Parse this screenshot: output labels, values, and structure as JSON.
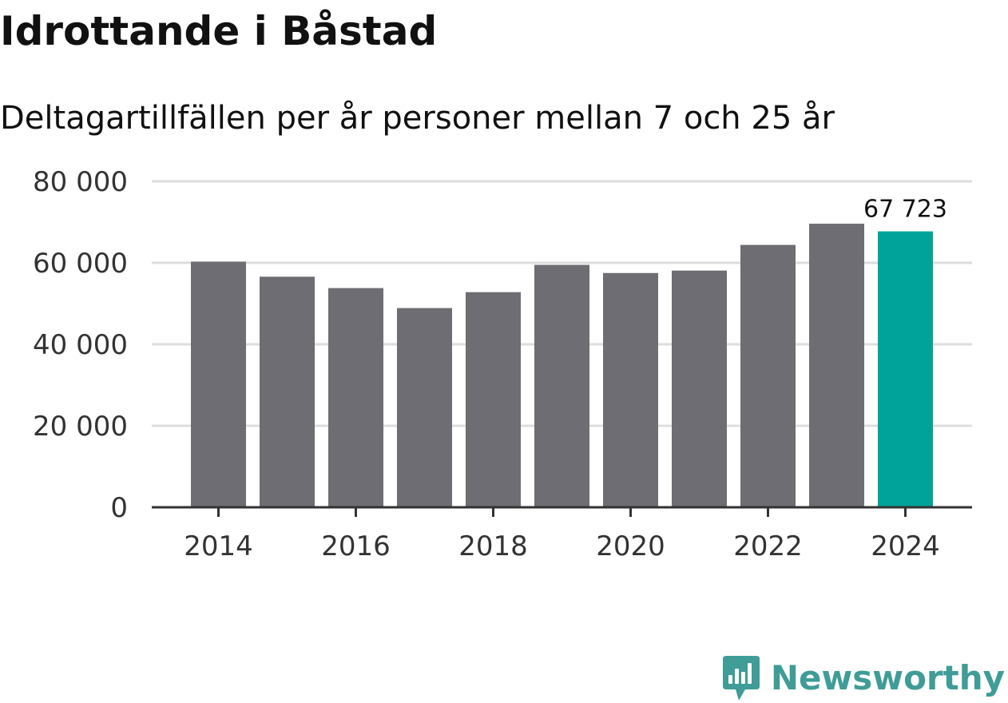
{
  "header": {
    "title": "Idrottande i Båstad",
    "subtitle": "Deltagartillfällen per år personer mellan 7 och 25 år"
  },
  "chart_data": {
    "type": "bar",
    "title": "Idrottande i Båstad",
    "subtitle": "Deltagartillfällen per år personer mellan 7 och 25 år",
    "xlabel": "",
    "ylabel": "",
    "categories": [
      "2014",
      "2015",
      "2016",
      "2017",
      "2018",
      "2019",
      "2020",
      "2021",
      "2022",
      "2023",
      "2024"
    ],
    "values": [
      60300,
      56600,
      53800,
      48900,
      52800,
      59500,
      57500,
      58100,
      64400,
      69600,
      67723
    ],
    "ylim": [
      0,
      80000
    ],
    "y_ticks": [
      0,
      20000,
      40000,
      60000,
      80000
    ],
    "y_tick_labels": [
      "0",
      "20 000",
      "40 000",
      "60 000",
      "80 000"
    ],
    "x_tick_labels": [
      "2014",
      "2016",
      "2018",
      "2020",
      "2022",
      "2024"
    ],
    "highlight_index": 10,
    "highlight_label": "67 723",
    "grid": true,
    "colors": {
      "bar": "#6e6d73",
      "highlight": "#00a399",
      "grid": "#dddddd",
      "axis": "#333333",
      "tick_text": "#333333"
    }
  },
  "brand": {
    "name": "Newsworthy",
    "icon": "newsworthy-logo-icon",
    "color": "#3f9c97"
  }
}
